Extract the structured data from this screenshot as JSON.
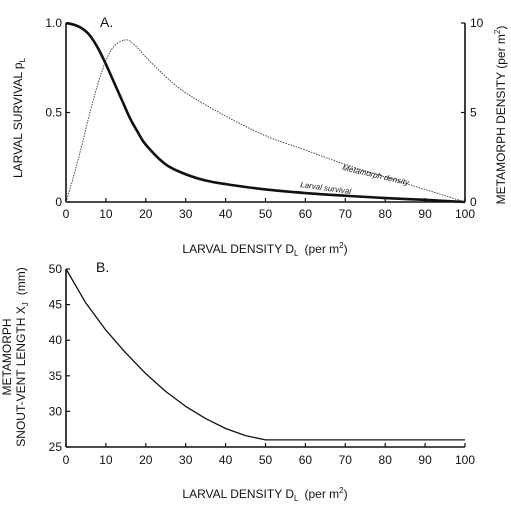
{
  "chart_data": [
    {
      "panel": "A.",
      "type": "line",
      "xlabel": "LARVAL DENSITY D",
      "xlabel_sub": "L",
      "xlabel_unit": "(per m",
      "xlabel_unit_sup": "2",
      "xlabel_unit_close": ")",
      "ylabel_left": "LARVAL SURVIVAL p",
      "ylabel_left_sub": "L",
      "ylabel_right": "METAMORPH DENSITY (per m",
      "ylabel_right_sup": "2",
      "ylabel_right_close": ")",
      "xlim": [
        0,
        100
      ],
      "ylim_left": [
        0,
        1.0
      ],
      "ylim_right": [
        0,
        10
      ],
      "xticks": [
        "0",
        "10",
        "20",
        "30",
        "40",
        "50",
        "60",
        "70",
        "80",
        "90",
        "100"
      ],
      "yticks_left": [
        "0",
        "0.5",
        "1.0"
      ],
      "yticks_right": [
        "0",
        "5",
        "10"
      ],
      "series": [
        {
          "name": "Larval survival",
          "axis": "left",
          "style": "thick-solid",
          "x": [
            0,
            2,
            4,
            6,
            8,
            10,
            12,
            14,
            16,
            18,
            20,
            25,
            30,
            35,
            40,
            50,
            60,
            70,
            80,
            90,
            100
          ],
          "y": [
            1.0,
            0.99,
            0.97,
            0.93,
            0.86,
            0.77,
            0.67,
            0.57,
            0.47,
            0.39,
            0.32,
            0.21,
            0.155,
            0.12,
            0.1,
            0.07,
            0.05,
            0.035,
            0.022,
            0.012,
            0.0
          ]
        },
        {
          "name": "Metamorph density",
          "axis": "right",
          "style": "thin-dotted",
          "x": [
            0,
            2,
            4,
            6,
            8,
            10,
            12,
            14,
            15,
            16,
            18,
            20,
            25,
            30,
            40,
            50,
            60,
            70,
            80,
            90,
            100
          ],
          "y": [
            0.0,
            1.5,
            3.2,
            5.0,
            6.6,
            7.9,
            8.7,
            9.0,
            9.05,
            9.0,
            8.6,
            8.1,
            7.0,
            6.1,
            4.8,
            3.7,
            2.9,
            2.1,
            1.4,
            0.7,
            0.0
          ]
        }
      ]
    },
    {
      "panel": "B.",
      "type": "line",
      "xlabel": "LARVAL DENSITY D",
      "xlabel_sub": "L",
      "xlabel_unit": "(per m",
      "xlabel_unit_sup": "2",
      "xlabel_unit_close": ")",
      "ylabel_line1": "METAMORPH",
      "ylabel_line2": "SNOUT-VENT LENGTH X",
      "ylabel_line2_sub": "J",
      "ylabel_line2_unit": "(mm)",
      "xlim": [
        0,
        100
      ],
      "ylim": [
        25,
        50
      ],
      "xticks": [
        "0",
        "10",
        "20",
        "30",
        "40",
        "50",
        "60",
        "70",
        "80",
        "90",
        "100"
      ],
      "yticks": [
        "25",
        "30",
        "35",
        "40",
        "45",
        "50"
      ],
      "series": [
        {
          "name": "",
          "style": "thin-solid",
          "x": [
            0,
            5,
            10,
            15,
            20,
            25,
            30,
            35,
            40,
            45,
            50,
            60,
            70,
            80,
            90,
            100
          ],
          "y": [
            50,
            45.2,
            41.4,
            38.2,
            35.3,
            32.8,
            30.7,
            29.0,
            27.6,
            26.6,
            26.0,
            26.0,
            26.0,
            26.0,
            26.0,
            26.0
          ]
        }
      ]
    }
  ]
}
